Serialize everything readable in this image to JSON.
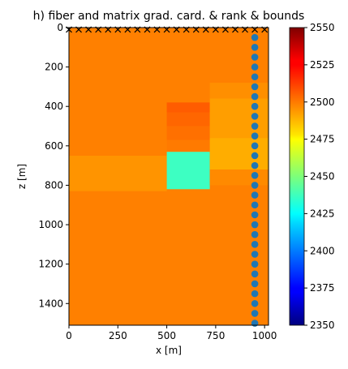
{
  "chart_data": {
    "type": "heatmap",
    "title": "h) fiber and matrix grad. card. & rank & bounds",
    "xlabel": "x [m]",
    "ylabel": "z [m]",
    "xlim": [
      0,
      1020
    ],
    "ylim": [
      1510,
      0
    ],
    "x_ticks": [
      0,
      250,
      500,
      750,
      1000
    ],
    "y_ticks": [
      0,
      200,
      400,
      600,
      800,
      1000,
      1200,
      1400
    ],
    "colorbar": {
      "colormap": "jet",
      "min": 2350,
      "max": 2550,
      "ticks": [
        2350,
        2375,
        2400,
        2425,
        2450,
        2475,
        2500,
        2525,
        2550
      ]
    },
    "background_value": 2500,
    "regions": [
      {
        "x": [
          0,
          500
        ],
        "z": [
          650,
          830
        ],
        "value": 2496
      },
      {
        "x": [
          500,
          720
        ],
        "z": [
          630,
          820
        ],
        "value": 2437
      },
      {
        "x": [
          500,
          720
        ],
        "z": [
          380,
          430
        ],
        "value": 2507
      },
      {
        "x": [
          500,
          720
        ],
        "z": [
          430,
          500
        ],
        "value": 2505
      },
      {
        "x": [
          500,
          720
        ],
        "z": [
          500,
          570
        ],
        "value": 2503
      },
      {
        "x": [
          500,
          720
        ],
        "z": [
          570,
          630
        ],
        "value": 2501
      },
      {
        "x": [
          720,
          1020
        ],
        "z": [
          280,
          360
        ],
        "value": 2497
      },
      {
        "x": [
          720,
          1020
        ],
        "z": [
          360,
          560
        ],
        "value": 2494
      },
      {
        "x": [
          720,
          1020
        ],
        "z": [
          560,
          720
        ],
        "value": 2491
      },
      {
        "x": [
          720,
          1020
        ],
        "z": [
          720,
          800
        ],
        "value": 2498
      }
    ],
    "sources": {
      "marker": "x",
      "z": 10,
      "x": [
        0,
        50,
        100,
        150,
        200,
        250,
        300,
        350,
        400,
        450,
        500,
        550,
        600,
        650,
        700,
        750,
        800,
        850,
        900,
        950,
        1000
      ]
    },
    "receivers": {
      "marker": "circle",
      "color": "#1f77b4",
      "x": 950,
      "z": [
        50,
        100,
        150,
        200,
        250,
        300,
        350,
        400,
        450,
        500,
        550,
        600,
        650,
        700,
        750,
        800,
        850,
        900,
        950,
        1000,
        1050,
        1100,
        1150,
        1200,
        1250,
        1300,
        1350,
        1400,
        1450,
        1500
      ]
    }
  }
}
